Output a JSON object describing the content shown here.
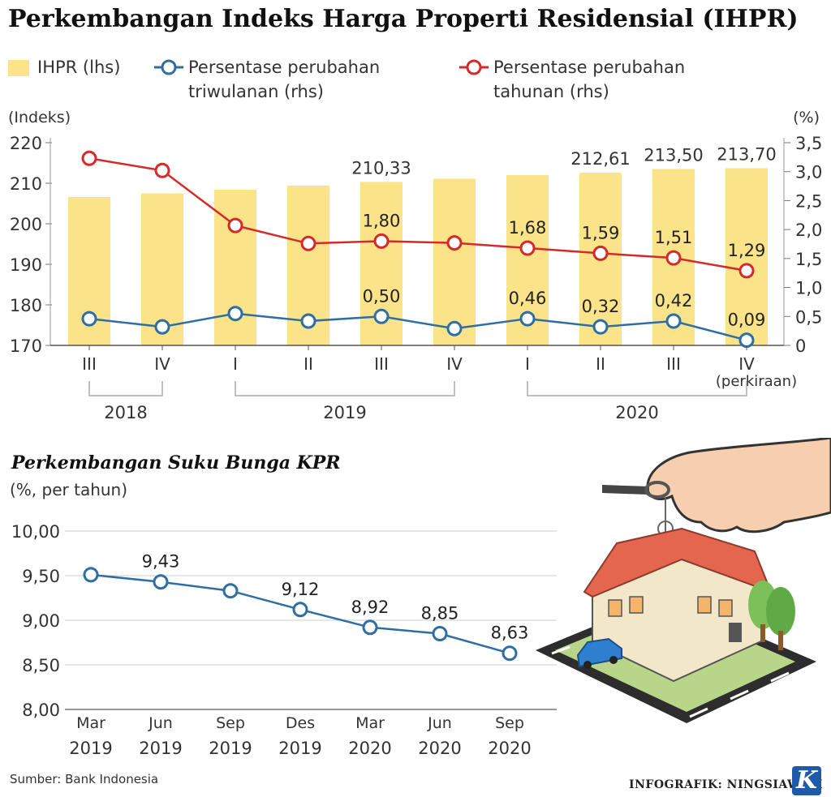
{
  "title": "Perkembangan Indeks Harga Properti Residensial (IHPR)",
  "legend": {
    "ihpr": "IHPR (lhs)",
    "qoq_line1": "Persentase perubahan",
    "qoq_line2": "triwulanan (rhs)",
    "yoy_line1": "Persentase perubahan",
    "yoy_line2": "tahunan (rhs)"
  },
  "colors": {
    "bar": "#fbe38a",
    "qoq": "#2f6ea5",
    "yoy": "#d42a2a",
    "kpr": "#2f6ea5",
    "grid": "#cccccc"
  },
  "chart_data": [
    {
      "type": "bar",
      "title": "Perkembangan Indeks Harga Properti Residensial (IHPR)",
      "ylabel_left": "(Indeks)",
      "ylabel_right": "(%)",
      "ylim_left": [
        170,
        220
      ],
      "yticks_left": [
        "220",
        "210",
        "200",
        "190",
        "180",
        "170"
      ],
      "ylim_right": [
        0,
        3.5
      ],
      "yticks_right": [
        "3,5",
        "3,0",
        "2,5",
        "2,0",
        "1,5",
        "1,0",
        "0,5",
        "0"
      ],
      "categories": [
        "III",
        "IV",
        "I",
        "II",
        "III",
        "IV",
        "I",
        "II",
        "III",
        "IV"
      ],
      "category_note": "(perkiraan)",
      "year_groups": [
        {
          "label": "2018",
          "start": 0,
          "end": 1
        },
        {
          "label": "2019",
          "start": 2,
          "end": 5
        },
        {
          "label": "2020",
          "start": 6,
          "end": 9
        }
      ],
      "bars": {
        "name": "IHPR (lhs)",
        "values": [
          206.6,
          207.5,
          208.4,
          209.4,
          210.33,
          211.1,
          212.0,
          212.61,
          213.5,
          213.7
        ],
        "labels": [
          "",
          "",
          "",
          "",
          "210,33",
          "",
          "",
          "212,61",
          "213,50",
          "213,70"
        ]
      },
      "series": [
        {
          "name": "Persentase perubahan tahunan (rhs)",
          "values": [
            3.23,
            3.02,
            2.07,
            1.76,
            1.8,
            1.77,
            1.68,
            1.59,
            1.51,
            1.29
          ],
          "labels": [
            "",
            "",
            "",
            "",
            "1,80",
            "",
            "1,68",
            "1,59",
            "1,51",
            "1,29"
          ]
        },
        {
          "name": "Persentase perubahan triwulanan (rhs)",
          "values": [
            0.46,
            0.32,
            0.55,
            0.42,
            0.5,
            0.29,
            0.46,
            0.32,
            0.42,
            0.09
          ],
          "labels": [
            "",
            "",
            "",
            "",
            "0,50",
            "",
            "0,46",
            "0,32",
            "0,42",
            "0,09"
          ]
        }
      ]
    },
    {
      "type": "line",
      "title": "Perkembangan Suku Bunga KPR",
      "ylabel": "(%, per tahun)",
      "ylim": [
        8.0,
        10.0
      ],
      "yticks": [
        "10,00",
        "9,50",
        "9,00",
        "8,50",
        "8,00"
      ],
      "categories": [
        [
          "Mar",
          "2019"
        ],
        [
          "Jun",
          "2019"
        ],
        [
          "Sep",
          "2019"
        ],
        [
          "Des",
          "2019"
        ],
        [
          "Mar",
          "2020"
        ],
        [
          "Jun",
          "2020"
        ],
        [
          "Sep",
          "2020"
        ]
      ],
      "values": [
        9.51,
        9.43,
        9.33,
        9.12,
        8.92,
        8.85,
        8.63
      ],
      "labels": [
        "",
        "9,43",
        "",
        "9,12",
        "8,92",
        "8,85",
        "8,63"
      ]
    }
  ],
  "footer": {
    "source": "Sumber: Bank Indonesia",
    "credit": "INFOGRAFIK: NINGSIAWATI",
    "logo": "K"
  }
}
